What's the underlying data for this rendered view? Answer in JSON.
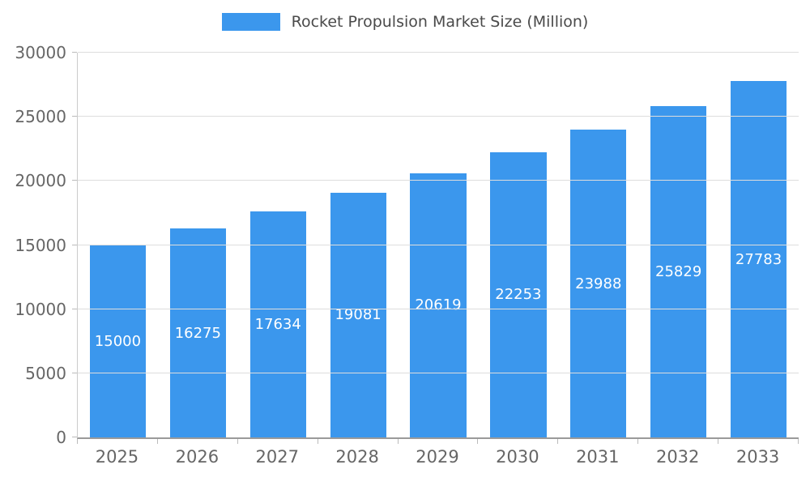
{
  "legend": {
    "label": "Rocket Propulsion Market Size (Million)"
  },
  "colors": {
    "bar": "#3B97ED",
    "value_label": "#ffffff",
    "gridline": "#dddddd",
    "axis_text": "#666666"
  },
  "chart_data": {
    "type": "bar",
    "title": "Rocket Propulsion Market Size (Million)",
    "categories": [
      "2025",
      "2026",
      "2027",
      "2028",
      "2029",
      "2030",
      "2031",
      "2032",
      "2033"
    ],
    "values": [
      15000,
      16275,
      17634,
      19081,
      20619,
      22253,
      23988,
      25829,
      27783
    ],
    "xlabel": "",
    "ylabel": "",
    "ylim": [
      0,
      30000
    ],
    "yticks": [
      0,
      5000,
      10000,
      15000,
      20000,
      25000,
      30000
    ],
    "grid": true,
    "legend_position": "top",
    "value_labels": "inside-center"
  }
}
